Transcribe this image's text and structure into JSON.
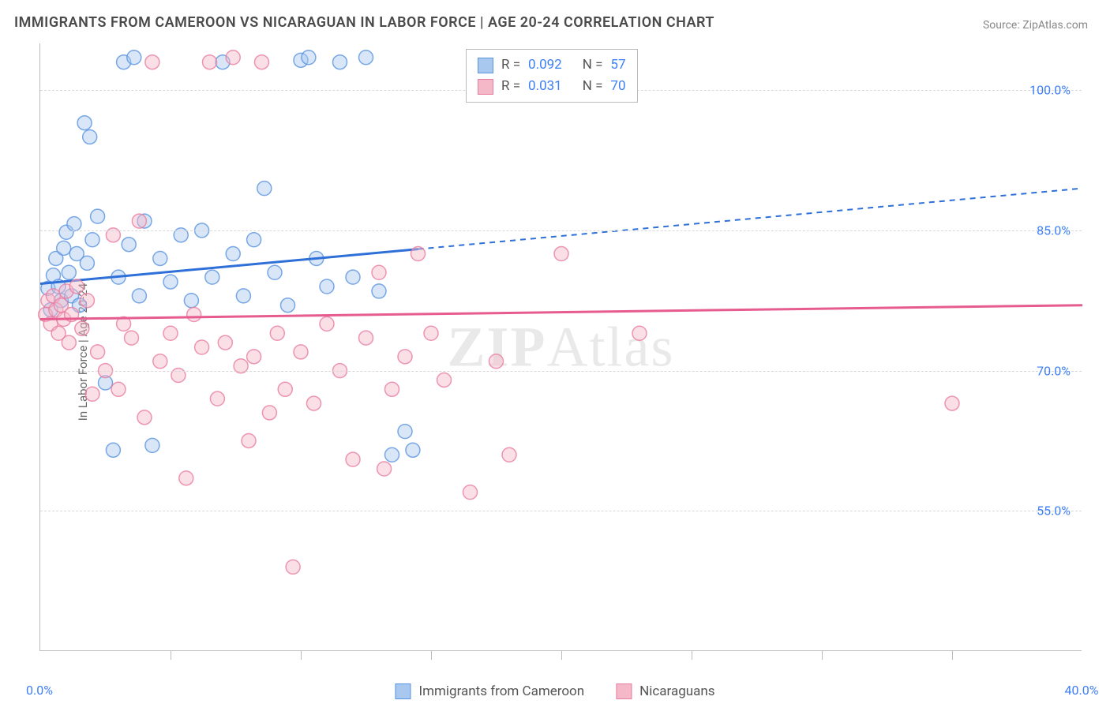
{
  "title": "IMMIGRANTS FROM CAMEROON VS NICARAGUAN IN LABOR FORCE | AGE 20-24 CORRELATION CHART",
  "source": "Source: ZipAtlas.com",
  "watermark_a": "ZIP",
  "watermark_b": "Atlas",
  "chart": {
    "type": "scatter-correlation",
    "ylabel": "In Labor Force | Age 20-24",
    "xlim": [
      0,
      40
    ],
    "ylim": [
      40,
      105
    ],
    "xtick_labels": [
      "0.0%",
      "40.0%"
    ],
    "xtick_positions": [
      0,
      40
    ],
    "x_minor_ticks": [
      5,
      10,
      15,
      20,
      25,
      30,
      35
    ],
    "ytick_labels": [
      "55.0%",
      "70.0%",
      "85.0%",
      "100.0%"
    ],
    "ytick_positions": [
      55,
      70,
      85,
      100
    ],
    "background_color": "#ffffff",
    "grid_color": "#d8d8d8",
    "axis_color": "#bbbbbb",
    "tick_label_color": "#3d7ff5",
    "marker_radius": 9,
    "marker_opacity": 0.45,
    "series": [
      {
        "name": "Immigrants from Cameroon",
        "color_fill": "#a8c8f0",
        "color_stroke": "#5a94e0",
        "line_color": "#2e6fd8",
        "r": 0.092,
        "n": 57,
        "regression": {
          "x1": 0,
          "y1": 79.3,
          "x2": 40,
          "y2": 89.5,
          "solid_until_x": 14.5
        },
        "points": [
          [
            0.3,
            78.8
          ],
          [
            0.4,
            76.5
          ],
          [
            0.5,
            80.2
          ],
          [
            0.6,
            82.0
          ],
          [
            0.7,
            79.0
          ],
          [
            0.8,
            77.5
          ],
          [
            0.9,
            83.1
          ],
          [
            1.0,
            84.8
          ],
          [
            1.1,
            80.5
          ],
          [
            1.2,
            78.0
          ],
          [
            1.3,
            85.7
          ],
          [
            1.4,
            82.5
          ],
          [
            1.5,
            77.0
          ],
          [
            1.7,
            96.5
          ],
          [
            1.8,
            81.5
          ],
          [
            1.9,
            95.0
          ],
          [
            2.0,
            84.0
          ],
          [
            2.2,
            86.5
          ],
          [
            2.5,
            68.7
          ],
          [
            2.8,
            61.5
          ],
          [
            3.0,
            80.0
          ],
          [
            3.2,
            103.0
          ],
          [
            3.4,
            83.5
          ],
          [
            3.6,
            103.5
          ],
          [
            3.8,
            78.0
          ],
          [
            4.0,
            86.0
          ],
          [
            4.3,
            62.0
          ],
          [
            4.6,
            82.0
          ],
          [
            5.0,
            79.5
          ],
          [
            5.4,
            84.5
          ],
          [
            5.8,
            77.5
          ],
          [
            6.2,
            85.0
          ],
          [
            6.6,
            80.0
          ],
          [
            7.0,
            103.0
          ],
          [
            7.4,
            82.5
          ],
          [
            7.8,
            78.0
          ],
          [
            8.2,
            84.0
          ],
          [
            8.6,
            89.5
          ],
          [
            9.0,
            80.5
          ],
          [
            9.5,
            77.0
          ],
          [
            10.0,
            103.2
          ],
          [
            10.3,
            103.5
          ],
          [
            10.6,
            82.0
          ],
          [
            11.0,
            79.0
          ],
          [
            11.5,
            103.0
          ],
          [
            12.0,
            80.0
          ],
          [
            12.5,
            103.5
          ],
          [
            13.0,
            78.5
          ],
          [
            13.5,
            61.0
          ],
          [
            14.0,
            63.5
          ],
          [
            14.3,
            61.5
          ]
        ]
      },
      {
        "name": "Nicaraguans",
        "color_fill": "#f5b8c9",
        "color_stroke": "#e87da0",
        "line_color": "#e65c8f",
        "r": 0.031,
        "n": 70,
        "regression": {
          "x1": 0,
          "y1": 75.5,
          "x2": 40,
          "y2": 77.0,
          "solid_until_x": 40
        },
        "points": [
          [
            0.2,
            76.0
          ],
          [
            0.3,
            77.5
          ],
          [
            0.4,
            75.0
          ],
          [
            0.5,
            78.0
          ],
          [
            0.6,
            76.5
          ],
          [
            0.7,
            74.0
          ],
          [
            0.8,
            77.0
          ],
          [
            0.9,
            75.5
          ],
          [
            1.0,
            78.5
          ],
          [
            1.1,
            73.0
          ],
          [
            1.2,
            76.0
          ],
          [
            1.4,
            79.0
          ],
          [
            1.6,
            74.5
          ],
          [
            1.8,
            77.5
          ],
          [
            2.0,
            67.5
          ],
          [
            2.2,
            72.0
          ],
          [
            2.5,
            70.0
          ],
          [
            2.8,
            84.5
          ],
          [
            3.0,
            68.0
          ],
          [
            3.2,
            75.0
          ],
          [
            3.5,
            73.5
          ],
          [
            3.8,
            86.0
          ],
          [
            4.0,
            65.0
          ],
          [
            4.3,
            103.0
          ],
          [
            4.6,
            71.0
          ],
          [
            5.0,
            74.0
          ],
          [
            5.3,
            69.5
          ],
          [
            5.6,
            58.5
          ],
          [
            5.9,
            76.0
          ],
          [
            6.2,
            72.5
          ],
          [
            6.5,
            103.0
          ],
          [
            6.8,
            67.0
          ],
          [
            7.1,
            73.0
          ],
          [
            7.4,
            103.5
          ],
          [
            7.7,
            70.5
          ],
          [
            8.0,
            62.5
          ],
          [
            8.2,
            71.5
          ],
          [
            8.5,
            103.0
          ],
          [
            8.8,
            65.5
          ],
          [
            9.1,
            74.0
          ],
          [
            9.4,
            68.0
          ],
          [
            9.7,
            49.0
          ],
          [
            10.0,
            72.0
          ],
          [
            10.5,
            66.5
          ],
          [
            11.0,
            75.0
          ],
          [
            11.5,
            70.0
          ],
          [
            12.0,
            60.5
          ],
          [
            12.5,
            73.5
          ],
          [
            13.0,
            80.5
          ],
          [
            13.2,
            59.5
          ],
          [
            13.5,
            68.0
          ],
          [
            14.0,
            71.5
          ],
          [
            14.5,
            82.5
          ],
          [
            15.0,
            74.0
          ],
          [
            15.5,
            69.0
          ],
          [
            16.5,
            57.0
          ],
          [
            17.5,
            71.0
          ],
          [
            18.0,
            61.0
          ],
          [
            20.0,
            82.5
          ],
          [
            23.0,
            74.0
          ],
          [
            35.0,
            66.5
          ]
        ]
      }
    ]
  },
  "legend_top": {
    "rows": [
      {
        "swatch_fill": "#a8c8f0",
        "swatch_stroke": "#5a94e0",
        "r_label": "R =",
        "r_val": "0.092",
        "n_label": "N =",
        "n_val": "57"
      },
      {
        "swatch_fill": "#f5b8c9",
        "swatch_stroke": "#e87da0",
        "r_label": "R =",
        "r_val": "0.031",
        "n_label": "N =",
        "n_val": "70"
      }
    ]
  },
  "legend_bottom": {
    "items": [
      {
        "swatch_fill": "#a8c8f0",
        "swatch_stroke": "#5a94e0",
        "label": "Immigrants from Cameroon"
      },
      {
        "swatch_fill": "#f5b8c9",
        "swatch_stroke": "#e87da0",
        "label": "Nicaraguans"
      }
    ]
  }
}
